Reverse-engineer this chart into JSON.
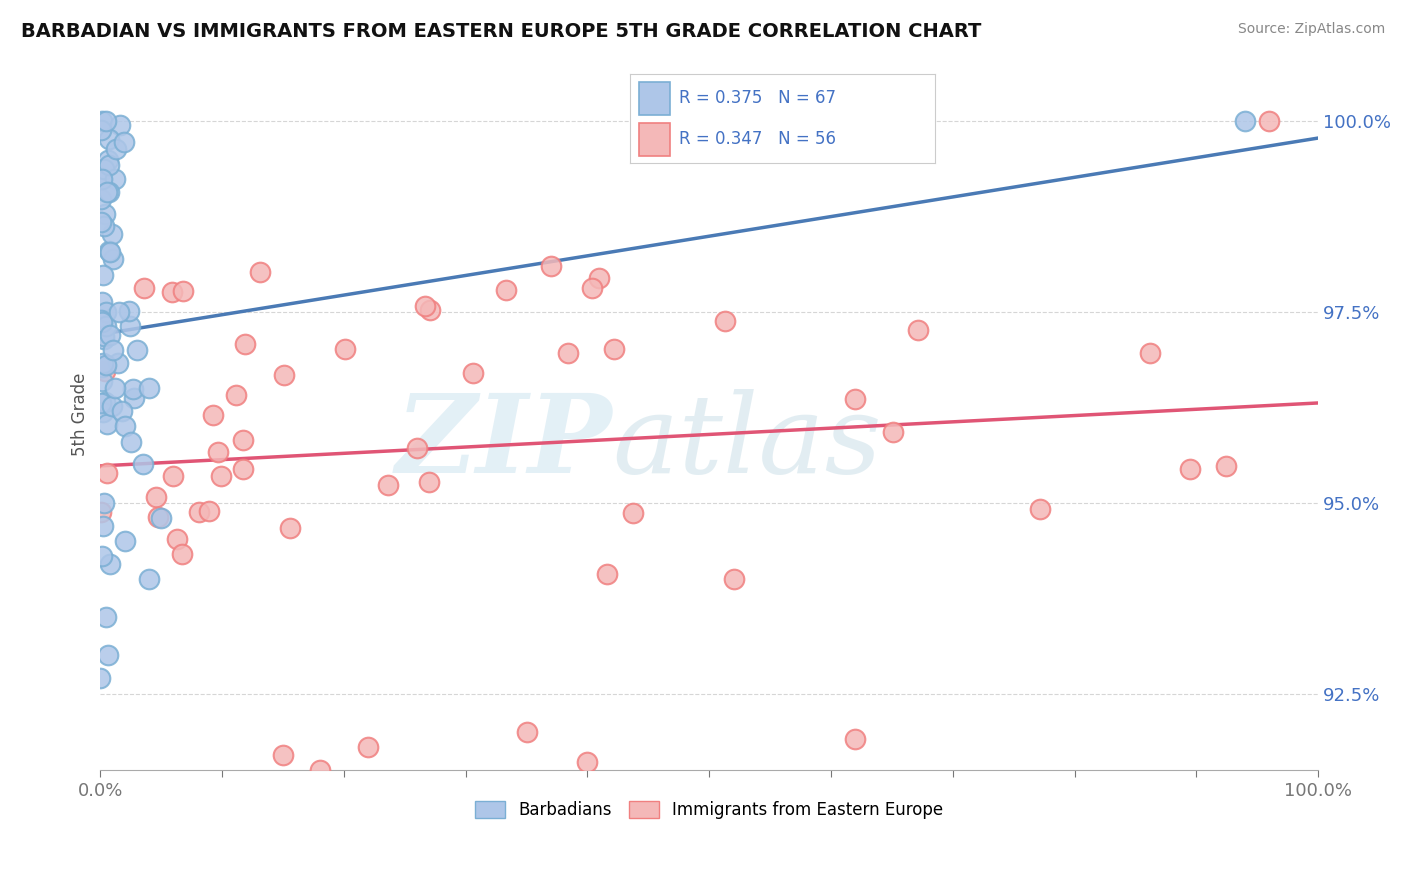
{
  "title": "BARBADIAN VS IMMIGRANTS FROM EASTERN EUROPE 5TH GRADE CORRELATION CHART",
  "source": "Source: ZipAtlas.com",
  "ylabel": "5th Grade",
  "barbadian_R": 0.375,
  "barbadian_N": 67,
  "eastern_europe_R": 0.347,
  "eastern_europe_N": 56,
  "barbadian_color": "#7bafd4",
  "barbadian_fill": "#aec6e8",
  "eastern_europe_color": "#f08080",
  "eastern_europe_fill": "#f4b8b8",
  "trendline_barbadian_color": "#4a7ab5",
  "trendline_eastern_europe_color": "#e05575",
  "background_color": "#ffffff",
  "xlim": [
    0,
    1.0
  ],
  "ylim": [
    0.915,
    1.008
  ],
  "y_ticks": [
    0.925,
    0.95,
    0.975,
    1.0
  ],
  "y_tick_labels": [
    "92.5%",
    "95.0%",
    "97.5%",
    "100.0%"
  ]
}
